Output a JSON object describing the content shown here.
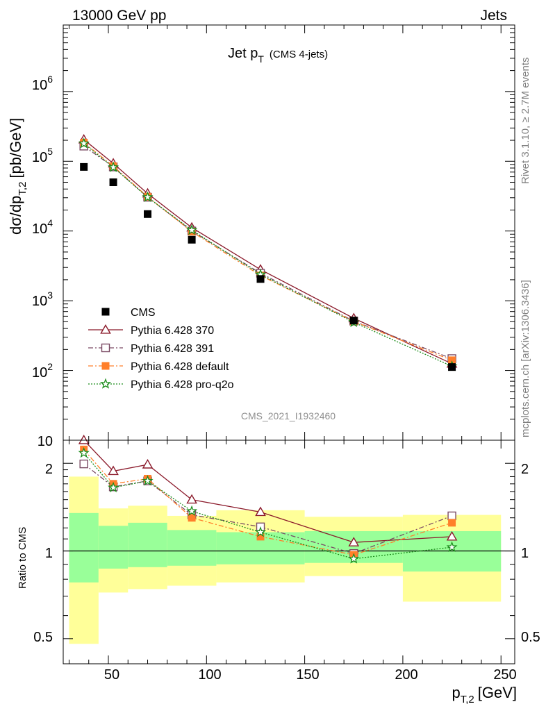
{
  "header": {
    "left": "13000 GeV pp",
    "right": "Jets"
  },
  "side_labels": {
    "rivet": "Rivet 3.1.10, ≥ 2.7M events",
    "mcplots": "mcplots.cern.ch [arXiv:1306.3436]"
  },
  "main_panel": {
    "title_main": "Jet p",
    "title_sub": "T",
    "title_note": "(CMS 4-jets)",
    "ylabel": "dσ/dp",
    "ylabel_sub": "T,2",
    "ylabel_unit": "[pb/GeV]",
    "analysis_id": "CMS_2021_I1932460",
    "y_tick_labels": [
      {
        "base": "10",
        "exp": "6"
      },
      {
        "base": "10",
        "exp": "5"
      },
      {
        "base": "10",
        "exp": "4"
      },
      {
        "base": "10",
        "exp": "3"
      },
      {
        "base": "10",
        "exp": "2"
      },
      {
        "base": "10",
        "exp": ""
      }
    ]
  },
  "ratio_panel": {
    "ylabel": "Ratio to CMS",
    "y_tick_labels": [
      "2",
      "1",
      "0.5"
    ]
  },
  "x_axis": {
    "label": "p",
    "label_sub": "T,2",
    "label_unit": "[GeV]",
    "tick_labels": [
      "50",
      "100",
      "150",
      "200",
      "250"
    ]
  },
  "chart_data": {
    "type": "scatter",
    "x": [
      37.5,
      52.5,
      70,
      92.5,
      127.5,
      175,
      225
    ],
    "bin_edges": [
      30,
      45,
      60,
      80,
      105,
      150,
      200,
      250
    ],
    "xlim": [
      27,
      257
    ],
    "ylim": [
      10,
      9000000
    ],
    "ylog": true,
    "ratio_ylim": [
      0.41,
      2.4
    ],
    "ratio_ylog": true,
    "legend_position": "bottom-left",
    "grid": false,
    "data": {
      "name": "CMS",
      "values": [
        83000,
        50000,
        17500,
        7500,
        2050,
        520,
        112
      ],
      "color": "#000000",
      "marker": "square-filled"
    },
    "series": [
      {
        "name": "Pythia 6.428 370",
        "values": [
          205000,
          93000,
          34500,
          11200,
          2800,
          560,
          125
        ],
        "ratio": [
          2.4,
          1.88,
          1.98,
          1.5,
          1.36,
          1.07,
          1.12
        ],
        "color": "#8b1a2b",
        "marker": "triangle-open",
        "dash": "solid"
      },
      {
        "name": "Pythia 6.428 391",
        "values": [
          165000,
          83000,
          30500,
          10000,
          2480,
          510,
          148
        ],
        "ratio": [
          1.99,
          1.66,
          1.74,
          1.33,
          1.21,
          0.98,
          1.32
        ],
        "color": "#7a4a63",
        "marker": "square-open",
        "dash": "dashdot"
      },
      {
        "name": "Pythia 6.428 default",
        "values": [
          185000,
          85000,
          31000,
          9800,
          2300,
          505,
          140
        ],
        "ratio": [
          2.23,
          1.7,
          1.77,
          1.3,
          1.12,
          0.97,
          1.25
        ],
        "color": "#ff7f2a",
        "marker": "square-filled",
        "dash": "dashdot"
      },
      {
        "name": "Pythia 6.428 pro-q2o",
        "values": [
          180000,
          82000,
          30500,
          10300,
          2380,
          490,
          115
        ],
        "ratio": [
          2.17,
          1.65,
          1.74,
          1.37,
          1.16,
          0.94,
          1.03
        ],
        "color": "#1a8c1a",
        "marker": "star-open",
        "dash": "dotted"
      }
    ],
    "ratio_band_inner": [
      [
        0.78,
        1.35
      ],
      [
        0.87,
        1.22
      ],
      [
        0.88,
        1.25
      ],
      [
        0.89,
        1.18
      ],
      [
        0.9,
        1.16
      ],
      [
        0.91,
        1.17
      ],
      [
        0.85,
        1.17
      ]
    ],
    "ratio_band_outer": [
      [
        0.48,
        1.8
      ],
      [
        0.72,
        1.4
      ],
      [
        0.74,
        1.43
      ],
      [
        0.76,
        1.32
      ],
      [
        0.78,
        1.38
      ],
      [
        0.82,
        1.31
      ],
      [
        0.67,
        1.33
      ]
    ],
    "colors": {
      "band_inner": "#99ff99",
      "band_outer": "#ffff99"
    }
  }
}
